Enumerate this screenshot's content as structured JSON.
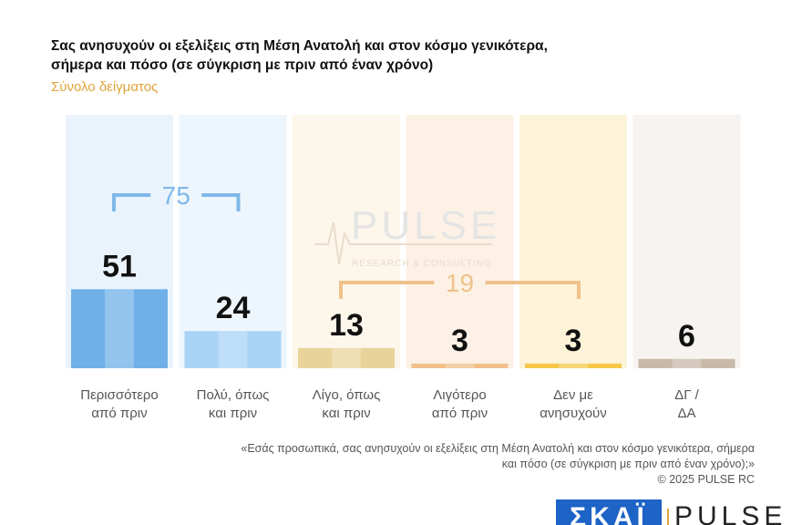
{
  "header": {
    "title_line1": "Σας ανησυχούν οι εξελίξεις στη Μέση Ανατολή και στον κόσμο γενικότερα,",
    "title_line2": "σήμερα και πόσο  (σε σύγκριση με πριν από έναν χρόνο)",
    "subtitle": "Σύνολο δείγματος"
  },
  "chart_data": {
    "type": "bar",
    "categories": [
      [
        "Περισσότερο",
        "από πριν"
      ],
      [
        "Πολύ, όπως",
        "και πριν"
      ],
      [
        "Λίγο, όπως",
        "και πριν"
      ],
      [
        "Λιγότερο",
        "από πριν"
      ],
      [
        "Δεν με",
        "ανησυχούν"
      ],
      [
        "ΔΓ /",
        "ΔΑ"
      ]
    ],
    "values": [
      51,
      24,
      13,
      3,
      3,
      6
    ],
    "ylim": [
      0,
      100
    ],
    "bar_colors": [
      "#6fb0e8",
      "#a9d3f5",
      "#e8d49a",
      "#f2c08a",
      "#f5c84a",
      "#c9b9a8"
    ],
    "column_bg_colors": [
      "#eaf3fc",
      "#eef6fd",
      "#fdf6ea",
      "#fdf1e6",
      "#fdf3d8",
      "#f6f3f0"
    ],
    "groups": [
      {
        "label": "75",
        "from": 0,
        "to": 1,
        "color": "#7fb8ea"
      },
      {
        "label": "19",
        "from": 2,
        "to": 4,
        "color": "#eec28a"
      }
    ]
  },
  "watermark": {
    "name": "PULSE",
    "tagline": "RESEARCH & CONSULTING"
  },
  "footnote": {
    "line1": "«Εσάς προσωπικά, σας ανησυχούν οι εξελίξεις στη Μέση Ανατολή και στον κόσμο γενικότερα, σήμερα",
    "line2": "και πόσο (σε σύγκριση με πριν από έναν χρόνο);»",
    "copyright": "©  2025  PULSE RC"
  },
  "logos": {
    "skai": "ΣΚΑΪ",
    "pulse": "PULSE"
  }
}
